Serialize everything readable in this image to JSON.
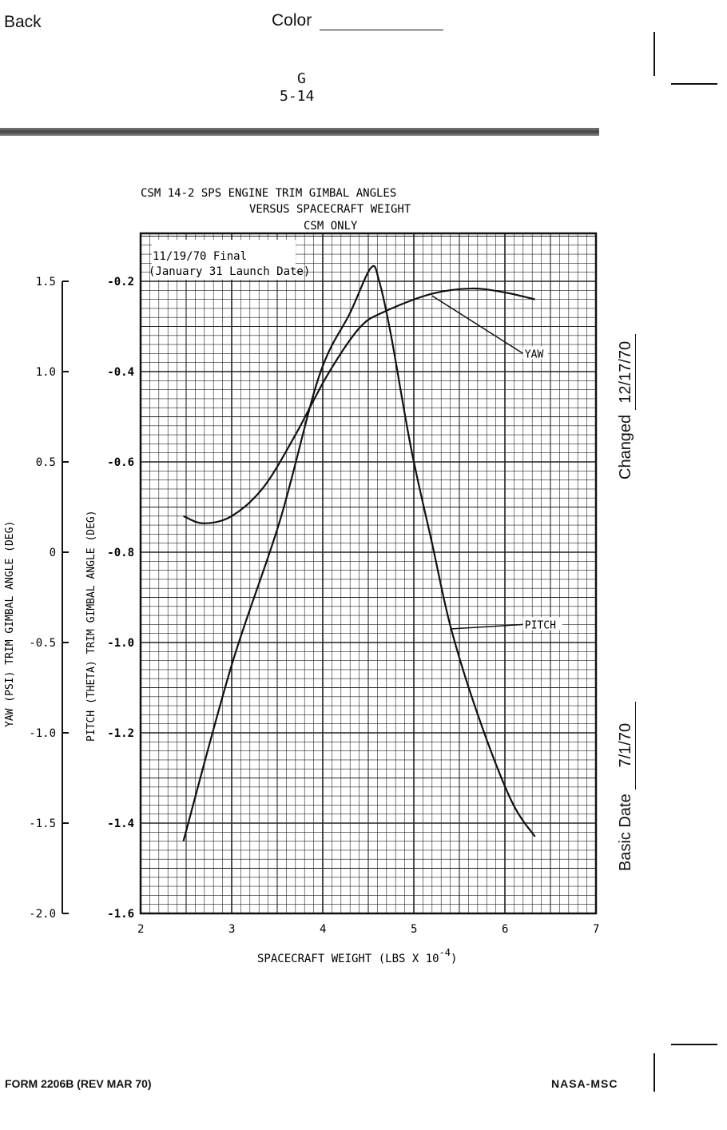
{
  "header": {
    "back": "Back",
    "color_label": "Color",
    "section": "G",
    "page_number": "5-14"
  },
  "side": {
    "changed_label": "Changed",
    "changed_date": "12/17/70",
    "basic_label": "Basic Date",
    "basic_date": "7/1/70"
  },
  "footer": {
    "form": "FORM 2206B (REV MAR 70)",
    "org": "NASA-MSC"
  },
  "chart_data": {
    "type": "line",
    "title": [
      "CSM 14-2   SPS ENGINE TRIM GIMBAL ANGLES",
      "VERSUS SPACECRAFT WEIGHT",
      "CSM ONLY"
    ],
    "annotation": [
      "11/19/70   Final",
      "(January 31 Launch Date)"
    ],
    "xlabel": "SPACECRAFT WEIGHT (LBS X 10",
    "xlabel_exp": "-4",
    "xlabel_end": ")",
    "ylabel_left": "YAW (PSI) TRIM GIMBAL ANGLE (DEG)",
    "ylabel_right": "PITCH (THETA) TRIM GIMBAL ANGLE (DEG)",
    "xlim": [
      2,
      7
    ],
    "pitch_ylim": [
      -1.6,
      -0.094
    ],
    "yaw_ylim": [
      -2.0,
      1.766
    ],
    "xticks": [
      "2",
      "3",
      "4",
      "5",
      "6",
      "7"
    ],
    "pitch_ticks": [
      "-0.2",
      "-0.4",
      "-0.6",
      "-0.8",
      "-1.0",
      "-1.2",
      "-1.4",
      "-1.6"
    ],
    "yaw_ticks": [
      "1.5",
      "1.0",
      "0.5",
      "0",
      "-0.5",
      "-1.0",
      "-1.5",
      "-2.0"
    ],
    "grid": true,
    "series": [
      {
        "name": "PITCH",
        "axis": "pitch",
        "label_at": [
          6.2,
          -0.96
        ],
        "arrow_to": [
          5.4,
          -0.97
        ],
        "x": [
          2.47,
          3.0,
          3.53,
          3.96,
          4.3,
          4.53,
          4.62,
          4.75,
          4.97,
          5.2,
          5.41,
          5.72,
          6.07,
          6.33
        ],
        "y": [
          -1.44,
          -1.05,
          -0.73,
          -0.41,
          -0.27,
          -0.17,
          -0.2,
          -0.32,
          -0.57,
          -0.78,
          -0.97,
          -1.17,
          -1.35,
          -1.43
        ]
      },
      {
        "name": "YAW",
        "axis": "yaw",
        "label_at": [
          6.2,
          1.1
        ],
        "arrow_to": [
          5.2,
          1.42
        ],
        "x": [
          2.47,
          2.69,
          3.0,
          3.35,
          3.7,
          4.05,
          4.4,
          4.67,
          5.19,
          5.63,
          5.98,
          6.33
        ],
        "y": [
          0.2,
          0.16,
          0.2,
          0.36,
          0.65,
          0.98,
          1.24,
          1.33,
          1.43,
          1.46,
          1.44,
          1.4
        ]
      }
    ]
  }
}
